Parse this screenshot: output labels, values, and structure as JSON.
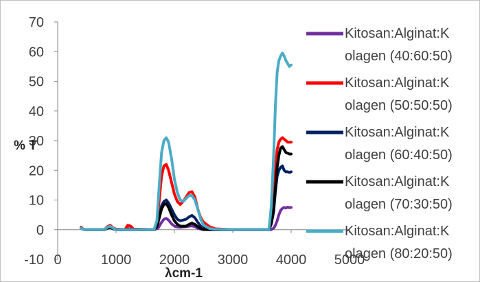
{
  "chart_data": {
    "type": "line",
    "title": "",
    "xlabel": "λcm-1",
    "ylabel": "% T",
    "xlim": [
      0,
      5000
    ],
    "ylim": [
      -10,
      70
    ],
    "xticks": [
      0,
      1000,
      2000,
      3000,
      4000,
      5000
    ],
    "yticks": [
      -10,
      0,
      10,
      20,
      30,
      40,
      50,
      60,
      70
    ],
    "xtick_labels": [
      "0",
      "1000",
      "2000",
      "3000",
      "4000",
      "5000"
    ],
    "ytick_labels": [
      "-10",
      "0",
      "10",
      "20",
      "30",
      "40",
      "50",
      "60",
      "70"
    ],
    "grid": false,
    "legend_position": "right",
    "series": [
      {
        "name": "Kitosan:Alginat:Kolagen (40:60:50)",
        "legend_lines": [
          "Kitosan:Alginat:K",
          "olagen (40:60:50)"
        ],
        "color": "#7030a0",
        "x": [
          400,
          430,
          470,
          800,
          850,
          900,
          950,
          1000,
          1150,
          1200,
          1250,
          1300,
          1650,
          1720,
          1780,
          1820,
          1860,
          1900,
          1950,
          2000,
          2050,
          2100,
          2200,
          2250,
          2300,
          2350,
          2400,
          2450,
          2500,
          2700,
          3000,
          3500,
          3650,
          3700,
          3730,
          3760,
          3790,
          3820,
          3850,
          3880,
          3910,
          3940,
          3970,
          4000
        ],
        "y": [
          0.5,
          0.2,
          0,
          0,
          0.5,
          0.8,
          0.3,
          0,
          0,
          0.4,
          0.2,
          0,
          0,
          0.5,
          2.5,
          3.5,
          3.8,
          3.2,
          2.0,
          1.2,
          0.9,
          0.8,
          1.0,
          1.2,
          1.3,
          1.0,
          0.5,
          0.2,
          0,
          0,
          0,
          0,
          0,
          0.5,
          1.5,
          3,
          5,
          6.5,
          7.2,
          7.5,
          7.3,
          7.6,
          7.4,
          7.5
        ]
      },
      {
        "name": "Kitosan:Alginat:Kolagen (50:50:50)",
        "legend_lines": [
          "Kitosan:Alginat:K",
          "olagen (50:50:50)"
        ],
        "color": "#ff0000",
        "x": [
          400,
          430,
          470,
          800,
          850,
          900,
          950,
          1000,
          1150,
          1200,
          1250,
          1300,
          1650,
          1700,
          1740,
          1780,
          1820,
          1860,
          1900,
          1950,
          2000,
          2050,
          2100,
          2150,
          2200,
          2250,
          2300,
          2350,
          2400,
          2450,
          2500,
          2600,
          2700,
          3000,
          3500,
          3620,
          3660,
          3700,
          3730,
          3760,
          3790,
          3820,
          3850,
          3880,
          3910,
          3940,
          3970,
          4000
        ],
        "y": [
          0.8,
          0.3,
          0,
          0,
          1.0,
          1.5,
          0.6,
          0.2,
          0,
          1.5,
          1.2,
          0.2,
          0,
          2,
          10,
          18,
          21.5,
          22,
          20,
          16,
          12,
          9.5,
          8.5,
          9.5,
          11,
          12.5,
          12.8,
          11,
          7,
          4,
          2.5,
          1,
          0.3,
          0,
          0,
          0,
          3,
          10,
          20,
          27,
          29.5,
          30.5,
          31,
          30.5,
          30,
          29.5,
          29.5,
          29.5
        ]
      },
      {
        "name": "Kitosan:Alginat:Kolagen (60:40:50)",
        "legend_lines": [
          "Kitosan:Alginat:K",
          "olagen (60:40:50)"
        ],
        "color": "#002060",
        "x": [
          400,
          430,
          470,
          800,
          850,
          900,
          950,
          1000,
          1650,
          1700,
          1740,
          1780,
          1820,
          1860,
          1900,
          1950,
          2000,
          2050,
          2100,
          2200,
          2250,
          2300,
          2350,
          2400,
          2450,
          2500,
          2700,
          3000,
          3500,
          3620,
          3660,
          3700,
          3730,
          3760,
          3790,
          3820,
          3850,
          3880,
          3910,
          3940,
          3970,
          4000
        ],
        "y": [
          0.6,
          0.2,
          0,
          0,
          0.6,
          1.0,
          0.4,
          0,
          0,
          1,
          4,
          8,
          9.5,
          10,
          9,
          7,
          5,
          3.5,
          3,
          3.5,
          4.3,
          4.8,
          4,
          2.5,
          1.2,
          0.5,
          0,
          0,
          0,
          0,
          2,
          6,
          13,
          18,
          20,
          21,
          21.5,
          20,
          19.5,
          19.5,
          19.3,
          19.5
        ]
      },
      {
        "name": "Kitosan:Alginat:Kolagen (70:30:50)",
        "legend_lines": [
          "Kitosan:Alginat:K",
          "olagen (70:30:50)"
        ],
        "color": "#000000",
        "x": [
          400,
          430,
          470,
          800,
          850,
          900,
          950,
          1000,
          1650,
          1700,
          1740,
          1780,
          1820,
          1860,
          1900,
          1950,
          2000,
          2050,
          2100,
          2200,
          2250,
          2300,
          2350,
          2400,
          2450,
          2500,
          2700,
          3000,
          3500,
          3620,
          3660,
          3700,
          3730,
          3760,
          3790,
          3820,
          3850,
          3880,
          3910,
          3940,
          3970,
          4000
        ],
        "y": [
          0.5,
          0.2,
          0,
          0,
          0.5,
          0.8,
          0.3,
          0,
          0,
          1,
          4,
          7,
          8.5,
          8.8,
          7.5,
          5,
          3,
          1.8,
          1.2,
          1.2,
          1.8,
          2.2,
          1.8,
          1,
          0.4,
          0.1,
          0,
          0,
          0,
          0,
          2,
          7,
          14,
          21,
          25,
          27.5,
          28,
          27,
          26,
          25.8,
          25.5,
          25.5
        ]
      },
      {
        "name": "Kitosan:Alginat:Kolagen (80:20:50)",
        "legend_lines": [
          "Kitosan:Alginat:K",
          "olagen (80:20:50)"
        ],
        "color": "#4bacc6",
        "x": [
          400,
          430,
          470,
          800,
          850,
          900,
          950,
          1000,
          1650,
          1700,
          1740,
          1780,
          1820,
          1860,
          1900,
          1950,
          2000,
          2050,
          2100,
          2150,
          2200,
          2250,
          2300,
          2350,
          2400,
          2450,
          2500,
          2600,
          2700,
          3000,
          3500,
          3620,
          3660,
          3700,
          3730,
          3760,
          3790,
          3820,
          3850,
          3880,
          3910,
          3940,
          3970,
          4000
        ],
        "y": [
          0.5,
          0.2,
          0,
          0,
          0.8,
          1.2,
          0.5,
          0,
          0,
          3,
          15,
          26,
          30,
          31,
          29.5,
          24,
          17,
          12.5,
          10,
          9.5,
          10.5,
          11.5,
          11.5,
          10,
          7,
          3.5,
          1.5,
          0.4,
          0.1,
          0,
          0,
          0,
          8,
          25,
          42,
          53,
          57,
          58.5,
          59.5,
          58.5,
          57,
          56,
          55,
          55.5
        ]
      }
    ]
  }
}
